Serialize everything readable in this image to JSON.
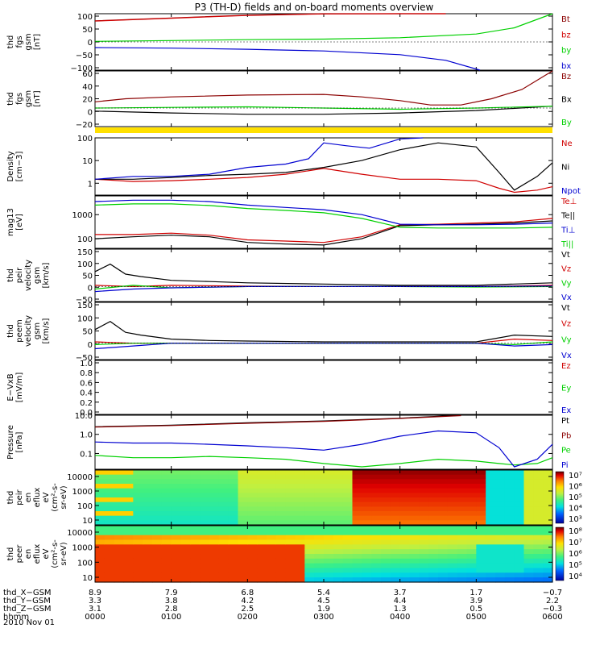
{
  "title": "P3 (TH-D) fields and on-board moments overview",
  "colors": {
    "red": "#d00000",
    "green": "#00d000",
    "blue": "#0000d0",
    "black": "#000000",
    "darkred": "#8b0000",
    "yellow": "#ffe000"
  },
  "chart_data": [
    {
      "type": "line",
      "id": "p1",
      "ylabel": [
        "thd",
        "fgs",
        "gsm",
        "[nT]"
      ],
      "yticks": [
        "100",
        "50",
        "0",
        "−50",
        "−100"
      ],
      "ylim": [
        -100,
        100
      ],
      "legend": [
        "Bt",
        "bz",
        "by",
        "bx"
      ],
      "series": [
        {
          "name": "Bt",
          "color": "#8b0000",
          "x": [
            0,
            1,
            2,
            3,
            4,
            4.6
          ],
          "y": [
            75,
            85,
            95,
            100,
            115,
            130
          ]
        },
        {
          "name": "bz",
          "color": "#d00000",
          "x": [
            0,
            1,
            2,
            3,
            4,
            4.6
          ],
          "y": [
            74,
            84,
            94,
            99,
            114,
            128
          ]
        },
        {
          "name": "by",
          "color": "#00d000",
          "x": [
            0,
            1,
            2,
            3,
            4,
            5,
            5.5,
            6
          ],
          "y": [
            2,
            5,
            8,
            10,
            15,
            28,
            50,
            105
          ]
        },
        {
          "name": "bx",
          "color": "#0000d0",
          "x": [
            0,
            1,
            2,
            3,
            4,
            4.6,
            5.05
          ],
          "y": [
            -20,
            -22,
            -26,
            -32,
            -45,
            -65,
            -100
          ]
        }
      ]
    },
    {
      "type": "line",
      "id": "p2",
      "ylabel": [
        "thd",
        "fgs",
        "gsm",
        "[nT]"
      ],
      "yticks": [
        "60",
        "40",
        "20",
        "0",
        "−20"
      ],
      "ylim": [
        -30,
        60
      ],
      "legend": [
        "Bz",
        "Bx",
        "By"
      ],
      "series": [
        {
          "name": "Bz",
          "color": "#8b0000",
          "x": [
            0,
            0.4,
            1,
            2,
            3,
            3.5,
            4,
            4.4,
            4.8,
            5.2,
            5.6,
            6
          ],
          "y": [
            10,
            15,
            18,
            21,
            22,
            18,
            12,
            5,
            5,
            15,
            30,
            60
          ]
        },
        {
          "name": "Bx",
          "color": "#000000",
          "x": [
            0,
            1,
            2,
            3,
            4,
            5,
            6
          ],
          "y": [
            -5,
            -8,
            -10,
            -10,
            -8,
            -4,
            3
          ]
        },
        {
          "name": "By",
          "color": "#00d000",
          "x": [
            0,
            1,
            2,
            3,
            4,
            5,
            6
          ],
          "y": [
            0,
            1,
            2,
            0,
            -2,
            0,
            3
          ]
        }
      ]
    },
    {
      "type": "line",
      "id": "p3",
      "ylabel": [
        "Density",
        "[cm−3]"
      ],
      "yticks": [
        "100",
        "10",
        "1"
      ],
      "ylim": [
        0.3,
        100
      ],
      "scale": "log",
      "legend": [
        "Ne",
        "Ni",
        "Npot"
      ],
      "series": [
        {
          "name": "Ne",
          "color": "#d00000",
          "x": [
            0,
            0.5,
            1,
            1.5,
            2,
            2.5,
            3,
            3.5,
            4,
            4.5,
            5,
            5.3,
            5.5,
            5.8,
            6
          ],
          "y": [
            1.5,
            1.2,
            1.3,
            1.5,
            1.8,
            2.5,
            4.5,
            2.5,
            1.5,
            1.5,
            1.3,
            0.6,
            0.4,
            0.5,
            0.7
          ]
        },
        {
          "name": "Ni",
          "color": "#000000",
          "x": [
            0,
            0.5,
            1,
            1.5,
            2,
            2.5,
            3,
            3.5,
            4,
            4.5,
            5,
            5.3,
            5.5,
            5.8,
            6
          ],
          "y": [
            1.5,
            1.5,
            1.8,
            2.2,
            2.5,
            3,
            5,
            10,
            30,
            60,
            40,
            3,
            0.5,
            2,
            8
          ]
        },
        {
          "name": "Npot",
          "color": "#0000d0",
          "x": [
            0,
            0.5,
            1,
            1.5,
            2,
            2.5,
            2.8,
            3,
            3.3,
            3.6,
            4,
            4.3
          ],
          "y": [
            1.5,
            2,
            2,
            2.5,
            5,
            7,
            12,
            60,
            45,
            35,
            90,
            110
          ]
        }
      ]
    },
    {
      "type": "line",
      "id": "p4",
      "ylabel": [
        "mag13",
        "[eV]"
      ],
      "yticks": [
        "1000",
        "100"
      ],
      "ylim": [
        40,
        6000
      ],
      "scale": "log",
      "legend": [
        "Te⊥",
        "Te||",
        "Ti⊥",
        "Ti||"
      ],
      "series": [
        {
          "name": "Te⊥",
          "color": "#d00000",
          "x": [
            0,
            0.5,
            1,
            1.5,
            2,
            2.5,
            3,
            3.5,
            4,
            4.5,
            5,
            5.5,
            6
          ],
          "y": [
            150,
            150,
            170,
            140,
            90,
            80,
            70,
            120,
            380,
            400,
            450,
            500,
            700
          ]
        },
        {
          "name": "Te||",
          "color": "#000000",
          "x": [
            0,
            0.5,
            1,
            1.5,
            2,
            2.5,
            3,
            3.5,
            4,
            4.5,
            5,
            5.5,
            6
          ],
          "y": [
            100,
            120,
            140,
            120,
            70,
            60,
            55,
            100,
            350,
            380,
            400,
            450,
            550
          ]
        },
        {
          "name": "Ti⊥",
          "color": "#0000d0",
          "x": [
            0,
            0.5,
            1,
            1.5,
            2,
            2.5,
            3,
            3.5,
            4,
            4.5,
            5,
            5.5,
            6
          ],
          "y": [
            3500,
            4000,
            4000,
            3500,
            2500,
            2000,
            1600,
            1000,
            400,
            380,
            380,
            400,
            450
          ]
        },
        {
          "name": "Ti||",
          "color": "#00d000",
          "x": [
            0,
            0.5,
            1,
            1.5,
            2,
            2.5,
            3,
            3.5,
            4,
            4.5,
            5,
            5.5,
            6
          ],
          "y": [
            2500,
            2800,
            2800,
            2400,
            1800,
            1500,
            1200,
            700,
            300,
            280,
            280,
            280,
            300
          ]
        }
      ]
    },
    {
      "type": "line",
      "id": "p5",
      "ylabel": [
        "thd",
        "peir",
        "velocity",
        "gsm",
        "[km/s]"
      ],
      "yticks": [
        "150",
        "100",
        "50",
        "0",
        "−50"
      ],
      "ylim": [
        -60,
        150
      ],
      "legend": [
        "Vt",
        "Vz",
        "Vy",
        "Vx"
      ],
      "series": [
        {
          "name": "Vt",
          "color": "#000000",
          "x": [
            0,
            0.2,
            0.4,
            0.6,
            1,
            1.5,
            2,
            3,
            4,
            5,
            5.5,
            6
          ],
          "y": [
            60,
            90,
            50,
            40,
            25,
            20,
            15,
            10,
            5,
            5,
            10,
            15
          ]
        },
        {
          "name": "Vz",
          "color": "#d00000",
          "x": [
            0,
            0.5,
            1,
            2,
            3,
            4,
            5,
            6
          ],
          "y": [
            5,
            0,
            5,
            2,
            0,
            0,
            0,
            5
          ]
        },
        {
          "name": "Vy",
          "color": "#00d000",
          "x": [
            0,
            0.5,
            1,
            2,
            3,
            4,
            5,
            6
          ],
          "y": [
            -10,
            5,
            -5,
            0,
            0,
            0,
            -2,
            0
          ]
        },
        {
          "name": "Vx",
          "color": "#0000d0",
          "x": [
            0,
            0.5,
            1,
            2,
            3,
            4,
            5,
            6
          ],
          "y": [
            -20,
            -10,
            -5,
            0,
            0,
            0,
            0,
            2
          ]
        }
      ]
    },
    {
      "type": "line",
      "id": "p6",
      "ylabel": [
        "thd",
        "peem",
        "velocity",
        "gsm",
        "[km/s]"
      ],
      "yticks": [
        "150",
        "100",
        "50",
        "0",
        "−50"
      ],
      "ylim": [
        -60,
        150
      ],
      "legend": [
        "Vt",
        "Vz",
        "Vy",
        "Vx"
      ],
      "series": [
        {
          "name": "Vt",
          "color": "#000000",
          "x": [
            0,
            0.2,
            0.4,
            0.6,
            1,
            1.5,
            2,
            3,
            4,
            5,
            5.5,
            6
          ],
          "y": [
            50,
            80,
            40,
            30,
            15,
            10,
            8,
            5,
            5,
            5,
            30,
            25
          ]
        },
        {
          "name": "Vz",
          "color": "#d00000",
          "x": [
            0,
            0.5,
            1,
            2,
            3,
            4,
            5,
            5.5,
            6
          ],
          "y": [
            5,
            0,
            0,
            0,
            0,
            0,
            0,
            15,
            10
          ]
        },
        {
          "name": "Vy",
          "color": "#00d000",
          "x": [
            0,
            0.5,
            1,
            2,
            3,
            4,
            5,
            5.5,
            6
          ],
          "y": [
            -5,
            0,
            0,
            0,
            0,
            0,
            0,
            -5,
            5
          ]
        },
        {
          "name": "Vx",
          "color": "#0000d0",
          "x": [
            0,
            0.5,
            1,
            2,
            3,
            4,
            5,
            5.5,
            6
          ],
          "y": [
            -20,
            -10,
            0,
            0,
            0,
            0,
            0,
            -10,
            -5
          ]
        }
      ]
    },
    {
      "type": "line",
      "id": "p7",
      "ylabel": [
        "E−VxB",
        "[mV/m]"
      ],
      "yticks": [
        "1.0",
        "0.8",
        "0.6",
        "0.4",
        "0.2",
        "0.0"
      ],
      "ylim": [
        0,
        1
      ],
      "legend": [
        "Ez",
        "Ey",
        "Ex"
      ],
      "series": []
    },
    {
      "type": "line",
      "id": "p8",
      "ylabel": [
        "Pressure",
        "[nPa]"
      ],
      "yticks": [
        "10.0",
        "1.0",
        "0.1"
      ],
      "ylim": [
        0.015,
        10
      ],
      "scale": "log",
      "legend": [
        "Pt",
        "Pb",
        "Pe",
        "Pi"
      ],
      "series": [
        {
          "name": "Pt",
          "color": "#000000",
          "x": [
            0,
            1,
            2,
            3,
            4,
            4.8
          ],
          "y": [
            2.5,
            3,
            4,
            5,
            7,
            10
          ]
        },
        {
          "name": "Pb",
          "color": "#8b0000",
          "x": [
            0,
            1,
            2,
            3,
            4,
            4.8
          ],
          "y": [
            2.4,
            2.9,
            3.8,
            4.8,
            6.8,
            9.5
          ]
        },
        {
          "name": "Pe",
          "color": "#00d000",
          "x": [
            0,
            0.5,
            1,
            1.5,
            2,
            2.5,
            3,
            3.5,
            4,
            4.5,
            5,
            5.3,
            5.5,
            5.8,
            6
          ],
          "y": [
            0.08,
            0.06,
            0.06,
            0.07,
            0.06,
            0.05,
            0.03,
            0.02,
            0.03,
            0.05,
            0.04,
            0.03,
            0.025,
            0.03,
            0.06
          ]
        },
        {
          "name": "Pi",
          "color": "#0000d0",
          "x": [
            0,
            0.5,
            1,
            1.5,
            2,
            2.5,
            3,
            3.5,
            4,
            4.5,
            5,
            5.3,
            5.5,
            5.8,
            6
          ],
          "y": [
            0.4,
            0.35,
            0.35,
            0.3,
            0.25,
            0.2,
            0.15,
            0.3,
            0.8,
            1.5,
            1.2,
            0.2,
            0.02,
            0.05,
            0.3
          ]
        }
      ]
    },
    {
      "type": "heatmap",
      "id": "p9",
      "ylabel": [
        "thd",
        "peir",
        "en",
        "eflux",
        "eV",
        "(cm²-s-",
        "sr-eV)"
      ],
      "yticks": [
        "10000",
        "1000",
        "100",
        "10"
      ],
      "colorbar_ticks": [
        "10⁷",
        "10⁶",
        "10⁵",
        "10⁴",
        "10³"
      ],
      "colorbar_range": [
        3,
        7.8
      ]
    },
    {
      "type": "heatmap",
      "id": "p10",
      "ylabel": [
        "thd",
        "peer",
        "en",
        "eflux",
        "eV",
        "(cm²-s-",
        "sr-eV)"
      ],
      "yticks": [
        "10000",
        "1000",
        "100",
        "10"
      ],
      "colorbar_ticks": [
        "10⁸",
        "10⁷",
        "10⁶",
        "10⁵",
        "10⁴"
      ],
      "colorbar_range": [
        3.5,
        8.2
      ]
    }
  ],
  "x_axis": {
    "xlim": [
      0,
      6
    ],
    "rows": [
      {
        "label": "thd_X−GSM",
        "values": [
          "8.9",
          "7.9",
          "6.8",
          "5.4",
          "3.7",
          "1.7",
          "−0.7"
        ]
      },
      {
        "label": "thd_Y−GSM",
        "values": [
          "3.3",
          "3.8",
          "4.2",
          "4.5",
          "4.4",
          "3.9",
          "2.2"
        ]
      },
      {
        "label": "thd_Z−GSM",
        "values": [
          "3.1",
          "2.8",
          "2.5",
          "1.9",
          "1.3",
          "0.5",
          "−0.3"
        ]
      },
      {
        "label": "hhmm",
        "values": [
          "0000",
          "0100",
          "0200",
          "0300",
          "0400",
          "0500",
          "0600"
        ]
      }
    ],
    "date": "2010 Nov 01"
  }
}
